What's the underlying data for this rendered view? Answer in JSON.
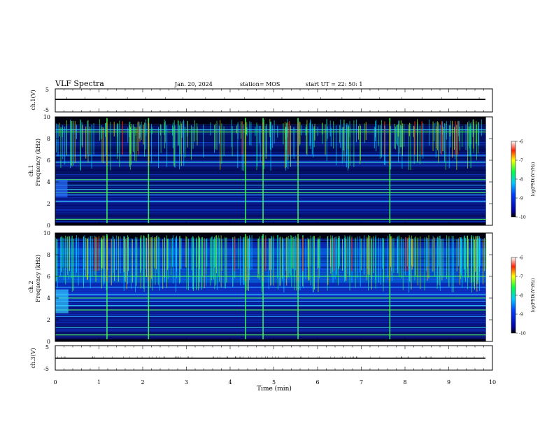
{
  "header": {
    "title": "VLF Spectra",
    "date": "Jan. 20, 2024",
    "station": "station= MOS",
    "start": "start  UT =   22: 50: 1"
  },
  "chart_data": [
    {
      "type": "line",
      "panel": "ch1-voltage",
      "ylabel": "ch.1(V)",
      "ylim": [
        -5,
        5
      ],
      "yticks": [
        5,
        -5
      ],
      "xlim": [
        0,
        9.85
      ],
      "series": [
        {
          "values_x": [
            0,
            9.85
          ],
          "values_y": [
            0,
            0
          ]
        }
      ]
    },
    {
      "type": "heatmap",
      "panel": "ch1-spectrogram",
      "ylabel_top": "ch.1",
      "ylabel": "Frequency (kHz)",
      "ylim": [
        0,
        10
      ],
      "yticks": [
        0,
        2,
        4,
        6,
        8,
        10
      ],
      "xlim": [
        0,
        9.85
      ],
      "colorbar": {
        "label": "log(PSD)(V²/Hz)",
        "range": [
          -10,
          -6
        ],
        "ticks": [
          -6,
          -7,
          -8,
          -9,
          -10
        ]
      },
      "tones_khz": [
        0.55,
        2.2,
        2.8,
        3.0,
        3.3,
        3.7,
        4.2,
        5.8,
        6.4,
        8.6,
        8.8
      ],
      "strong_bursts_min": [
        1.18,
        2.13,
        4.35,
        4.75,
        5.55,
        7.65
      ]
    },
    {
      "type": "heatmap",
      "panel": "ch2-spectrogram",
      "ylabel_top": "ch.2",
      "ylabel": "Frequency (kHz)",
      "ylim": [
        0,
        10
      ],
      "yticks": [
        0,
        2,
        4,
        6,
        8,
        10
      ],
      "xlim": [
        0,
        9.85
      ],
      "colorbar": {
        "label": "log(PSD)(V²/Hz)",
        "range": [
          -10,
          -6
        ],
        "ticks": [
          -6,
          -7,
          -8,
          -9,
          -10
        ]
      },
      "tones_khz": [
        0.6,
        1.3,
        2.3,
        2.9,
        3.3,
        3.7,
        4.0,
        4.3,
        5.0,
        6.0
      ],
      "strong_bursts_min": [
        1.18,
        2.13,
        4.35,
        4.75,
        5.55,
        7.65
      ]
    },
    {
      "type": "line",
      "panel": "ch3-voltage",
      "ylabel": "ch.3(V)",
      "ylim": [
        -5,
        5
      ],
      "yticks": [
        5,
        -5
      ],
      "xlim": [
        0,
        9.85
      ],
      "series": [
        {
          "values_x": [
            0,
            9.85
          ],
          "values_y": [
            -0.2,
            -0.2
          ]
        }
      ]
    }
  ],
  "xaxis": {
    "label": "Time (min)",
    "range": [
      0,
      10
    ],
    "ticks": [
      "0",
      "1",
      "2",
      "3",
      "4",
      "5",
      "6",
      "7",
      "8",
      "9",
      "10"
    ]
  }
}
